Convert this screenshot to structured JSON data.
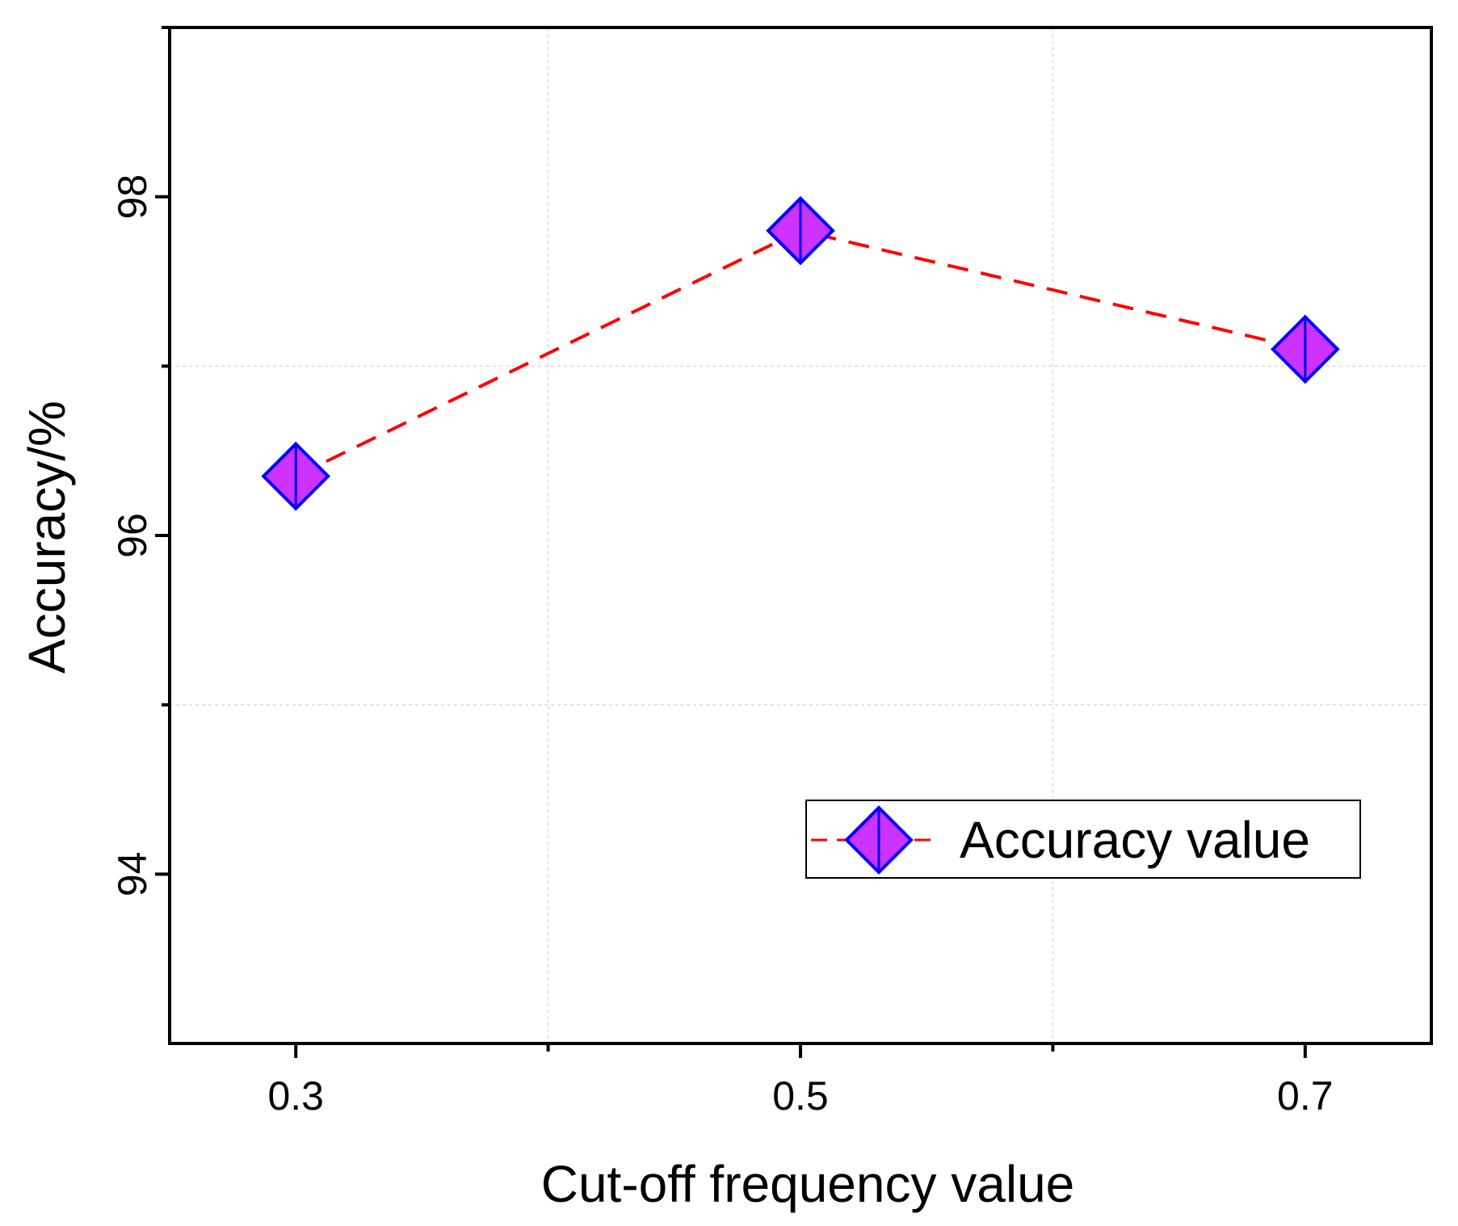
{
  "chart_data": {
    "type": "line",
    "title": "",
    "xlabel": "Cut-off frequency value",
    "ylabel": "Accuracy/%",
    "x": [
      0.3,
      0.5,
      0.7
    ],
    "x_tick_labels": [
      "0.3",
      "0.5",
      "0.7"
    ],
    "xlim": [
      0.25,
      0.75
    ],
    "ylim": [
      93,
      99
    ],
    "y_ticks": [
      94,
      96,
      98
    ],
    "y_tick_labels": [
      "94",
      "96",
      "98"
    ],
    "grid": true,
    "series": [
      {
        "name": "Accuracy value",
        "values": [
          96.35,
          97.8,
          97.1
        ],
        "marker": "diamond",
        "line_style": "dashed",
        "line_color": "#ff0000",
        "marker_fill": "#cc33ff",
        "marker_edge": "#0000ff"
      }
    ],
    "legend": {
      "position": "bottom-right",
      "label": "Accuracy value"
    }
  }
}
